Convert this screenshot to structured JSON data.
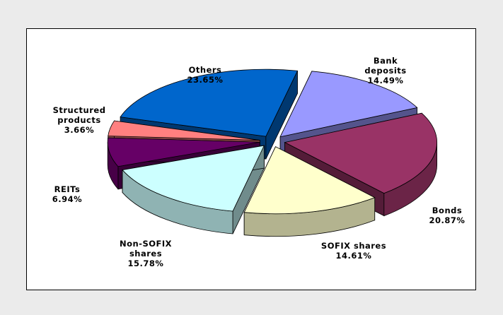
{
  "chart_data": {
    "type": "pie3d",
    "categories": [
      "Bank deposits",
      "Bonds",
      "SOFIX shares",
      "Non-SOFIX shares",
      "REITs",
      "Structured products",
      "Others"
    ],
    "values": [
      14.49,
      20.87,
      14.61,
      15.78,
      6.94,
      3.66,
      23.65
    ],
    "value_labels": [
      "14.49%",
      "20.87%",
      "14.61%",
      "15.78%",
      "6.94%",
      "3.66%",
      "23.65%"
    ],
    "colors": [
      "#9999ff",
      "#993366",
      "#ffffcc",
      "#ccffff",
      "#660066",
      "#ff8080",
      "#0066cc"
    ]
  }
}
